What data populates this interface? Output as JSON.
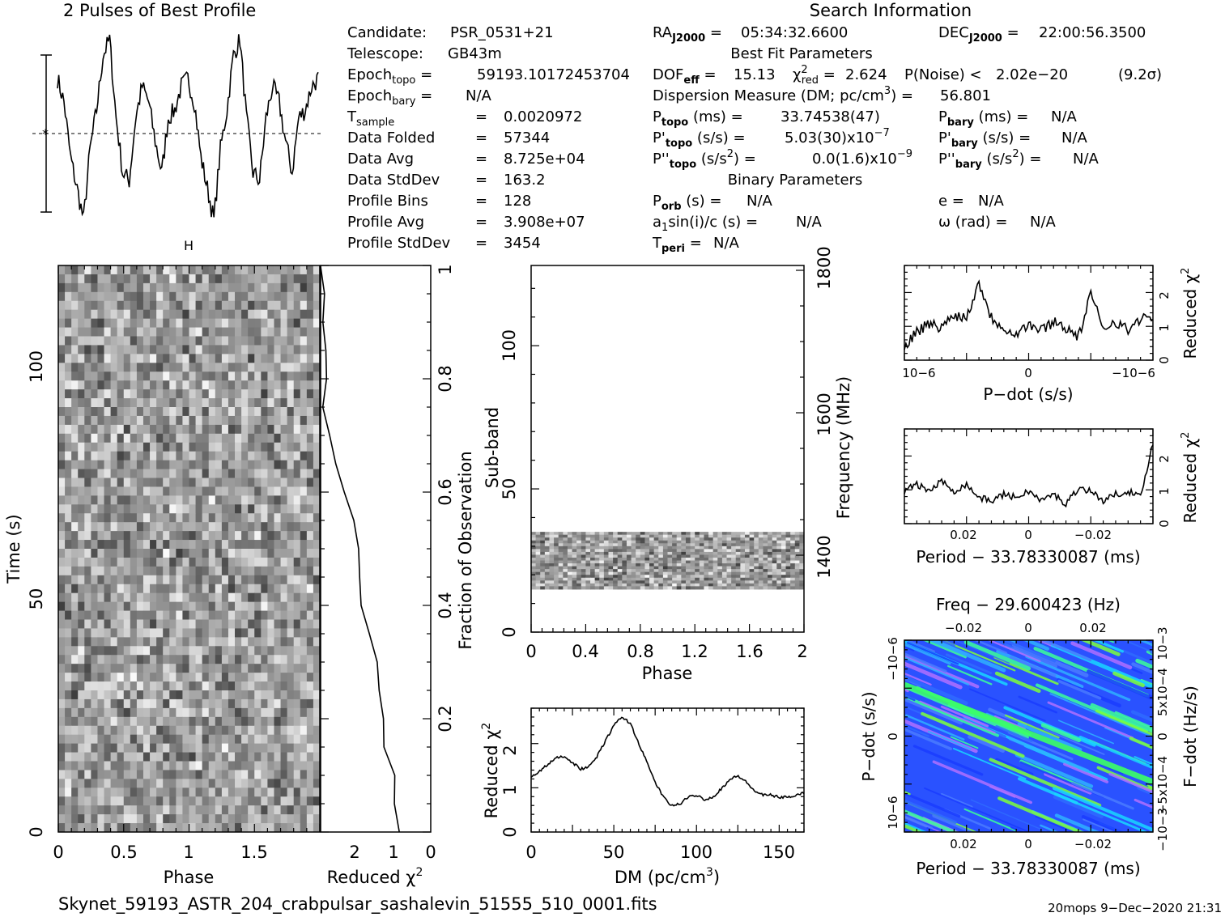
{
  "titles": {
    "profile": "2 Pulses of Best Profile",
    "search": "Search Information",
    "best_fit": "Best Fit Parameters",
    "binary": "Binary Parameters"
  },
  "info": {
    "candidate": "PSR_0531+21",
    "telescope": "GB43m",
    "epoch_topo": "59193.10172453704",
    "epoch_bary": "N/A",
    "t_sample": "0.0020972",
    "data_folded": "57344",
    "data_avg": "8.725e+04",
    "data_stddev": "163.2",
    "profile_bins": "128",
    "profile_avg": "3.908e+07",
    "profile_stddev": "3454",
    "ra": "05:34:32.6600",
    "dec": "22:00:56.3500",
    "dof_eff": "15.13",
    "chi2_red": "2.624",
    "p_noise": "2.02e−20",
    "sigma": "(9.2σ)",
    "dm": "56.801",
    "p_topo": "33.74538(47)",
    "pdot_topo": "5.03(30)x10",
    "pdot_topo_exp": "−7",
    "pddot_topo": "0.0(1.6)x10",
    "pddot_topo_exp": "−9",
    "p_bary": "N/A",
    "pdot_bary": "N/A",
    "pddot_bary": "N/A",
    "p_orb": "N/A",
    "asini": "N/A",
    "t_peri": "N/A",
    "e": "N/A",
    "omega": "N/A"
  },
  "footer": {
    "filename": "Skynet_59193_ASTR_204_crabpulsar_sashalevin_51555_510_0001.fits",
    "stamp": "20mops  9−Dec−2020 21:31"
  },
  "colors": {
    "ink": "#000000",
    "bg": "#ffffff",
    "accent_green": "#00ff66",
    "accent_blue": "#1a3cff",
    "accent_violet": "#b070ff"
  },
  "chart_data": [
    {
      "type": "line",
      "id": "profile",
      "title": "2 Pulses of Best Profile",
      "x": [
        0.0,
        0.05,
        0.1,
        0.15,
        0.2,
        0.25,
        0.3,
        0.35,
        0.4,
        0.45,
        0.5,
        0.55,
        0.6,
        0.65,
        0.7,
        0.75,
        0.8,
        0.85,
        0.9,
        0.95,
        1.0,
        1.05,
        1.1,
        1.15,
        1.2,
        1.25,
        1.3,
        1.35,
        1.4,
        1.45,
        1.5,
        1.55,
        1.6,
        1.65,
        1.7,
        1.75,
        1.8,
        1.85,
        1.9,
        1.95,
        2.0
      ],
      "y": [
        0.7,
        0.4,
        -0.3,
        -0.7,
        -1.1,
        -0.2,
        0.3,
        1.0,
        1.2,
        0.2,
        -0.5,
        -0.6,
        0.2,
        0.6,
        0.4,
        -0.1,
        -0.5,
        0.2,
        0.3,
        0.6,
        0.7,
        0.4,
        -0.3,
        -0.7,
        -1.1,
        -0.2,
        0.3,
        1.0,
        1.2,
        0.2,
        -0.5,
        -0.6,
        0.2,
        0.6,
        0.4,
        -0.1,
        -0.5,
        0.2,
        0.3,
        0.6,
        0.7
      ],
      "ylim": [
        -1.0,
        1.0
      ]
    },
    {
      "type": "heatmap",
      "id": "time-phase",
      "xlabel": "Phase",
      "ylabel": "Time (s)",
      "xlim": [
        0,
        2
      ],
      "ylim": [
        0,
        120
      ],
      "xticks": [
        "0",
        "0.5",
        "1",
        "1.5"
      ],
      "yticks": [
        "0",
        "50",
        "100"
      ],
      "right_label": "Fraction of Observation",
      "right_ticks": [
        "0.2",
        "0.4",
        "0.6",
        "0.8",
        "1"
      ],
      "rows": 64,
      "cols": 40,
      "grayscale": true
    },
    {
      "type": "line",
      "id": "reduced-chi2-time",
      "xlabel": "Reduced χ²",
      "xticks": [
        "2",
        "1",
        "0"
      ],
      "xlim": [
        0,
        3
      ],
      "y_fraction": [
        0.0,
        0.05,
        0.1,
        0.15,
        0.2,
        0.25,
        0.3,
        0.35,
        0.4,
        0.45,
        0.5,
        0.55,
        0.6,
        0.65,
        0.7,
        0.75,
        0.8,
        0.85,
        0.9,
        0.95,
        1.0
      ],
      "x_values": [
        0.85,
        1.0,
        1.0,
        1.25,
        1.3,
        1.45,
        1.5,
        1.65,
        1.85,
        1.95,
        1.95,
        2.15,
        2.3,
        2.55,
        2.7,
        2.9,
        2.85,
        2.9,
        2.95,
        2.85,
        2.95
      ]
    },
    {
      "type": "heatmap",
      "id": "subband-phase",
      "xlabel": "Phase",
      "ylabel": "Sub-band",
      "right_label": "Frequency (MHz)",
      "xlim": [
        0,
        2
      ],
      "ylim": [
        0,
        128
      ],
      "xticks": [
        "0",
        "0.4",
        "0.8",
        "1.2",
        "1.6",
        "2"
      ],
      "yticks": [
        "0",
        "50",
        "100"
      ],
      "right_ticks": [
        "1400",
        "1600",
        "1800"
      ],
      "filled_band": [
        15,
        35
      ],
      "grayscale": true
    },
    {
      "type": "line",
      "id": "dm-curve",
      "xlabel": "DM (pc/cm³)",
      "ylabel": "Reduced χ²",
      "xlim": [
        0,
        165
      ],
      "ylim": [
        0,
        2.85
      ],
      "xticks": [
        "0",
        "50",
        "100",
        "150"
      ],
      "yticks": [
        "0",
        "1",
        "2"
      ],
      "x": [
        0,
        5,
        10,
        15,
        20,
        25,
        30,
        35,
        40,
        45,
        50,
        55,
        60,
        65,
        70,
        75,
        80,
        85,
        90,
        95,
        100,
        105,
        110,
        115,
        120,
        125,
        130,
        135,
        140,
        145,
        150,
        155,
        160,
        165
      ],
      "y": [
        1.25,
        1.4,
        1.55,
        1.7,
        1.75,
        1.6,
        1.45,
        1.5,
        1.75,
        2.1,
        2.45,
        2.65,
        2.5,
        2.05,
        1.6,
        1.15,
        0.8,
        0.6,
        0.65,
        0.8,
        0.85,
        0.75,
        0.8,
        1.0,
        1.2,
        1.3,
        1.15,
        0.95,
        0.85,
        0.85,
        0.8,
        0.8,
        0.85,
        0.9
      ]
    },
    {
      "type": "line",
      "id": "pdot-curve",
      "xlabel": "P−dot (s/s)",
      "ylabel": "Reduced χ²",
      "ylim": [
        0,
        2.9
      ],
      "xticks": [
        "10−6",
        "0",
        "−10−6"
      ],
      "yticks": [
        "0",
        "1",
        "2"
      ],
      "x": [
        0.0,
        0.05,
        0.1,
        0.15,
        0.2,
        0.25,
        0.3,
        0.35,
        0.4,
        0.45,
        0.5,
        0.55,
        0.6,
        0.65,
        0.7,
        0.75,
        0.8,
        0.85,
        0.9,
        0.95,
        1.0
      ],
      "y": [
        0.4,
        0.9,
        1.1,
        1.0,
        1.4,
        1.3,
        2.4,
        1.3,
        1.0,
        0.8,
        1.1,
        0.9,
        1.2,
        1.0,
        0.7,
        2.0,
        1.0,
        1.2,
        0.9,
        1.3,
        1.2
      ]
    },
    {
      "type": "line",
      "id": "period-curve",
      "xlabel": "Period − 33.78330087 (ms)",
      "ylabel": "Reduced χ²",
      "ylim": [
        0,
        2.9
      ],
      "xticks": [
        "0.02",
        "0",
        "−0.02"
      ],
      "yticks": [
        "0",
        "1",
        "2"
      ],
      "x": [
        0.0,
        0.05,
        0.1,
        0.15,
        0.2,
        0.25,
        0.3,
        0.35,
        0.4,
        0.45,
        0.5,
        0.55,
        0.6,
        0.65,
        0.7,
        0.75,
        0.8,
        0.85,
        0.9,
        0.95,
        1.0
      ],
      "y": [
        1.0,
        1.2,
        1.0,
        1.3,
        1.0,
        1.2,
        0.8,
        0.7,
        0.9,
        0.8,
        1.0,
        0.7,
        0.9,
        0.6,
        1.1,
        1.0,
        0.7,
        0.9,
        1.0,
        0.8,
        2.5
      ]
    },
    {
      "type": "heatmap",
      "id": "p-pdot-plane",
      "title": "Freq − 29.600423 (Hz)",
      "xlabel": "Period − 33.78330087 (ms)",
      "ylabel": "P−dot (s/s)",
      "right_label": "F−dot (Hz/s)",
      "top_ticks": [
        "−0.02",
        "0",
        "0.02"
      ],
      "bottom_ticks": [
        "0.02",
        "0",
        "−0.02"
      ],
      "left_ticks": [
        "−10−6",
        "0",
        "10−6"
      ],
      "right_ticks": [
        "10−3",
        "5x10−4",
        "0",
        "−5x10−4",
        "−10−3"
      ],
      "colormap": "blue-green"
    }
  ]
}
